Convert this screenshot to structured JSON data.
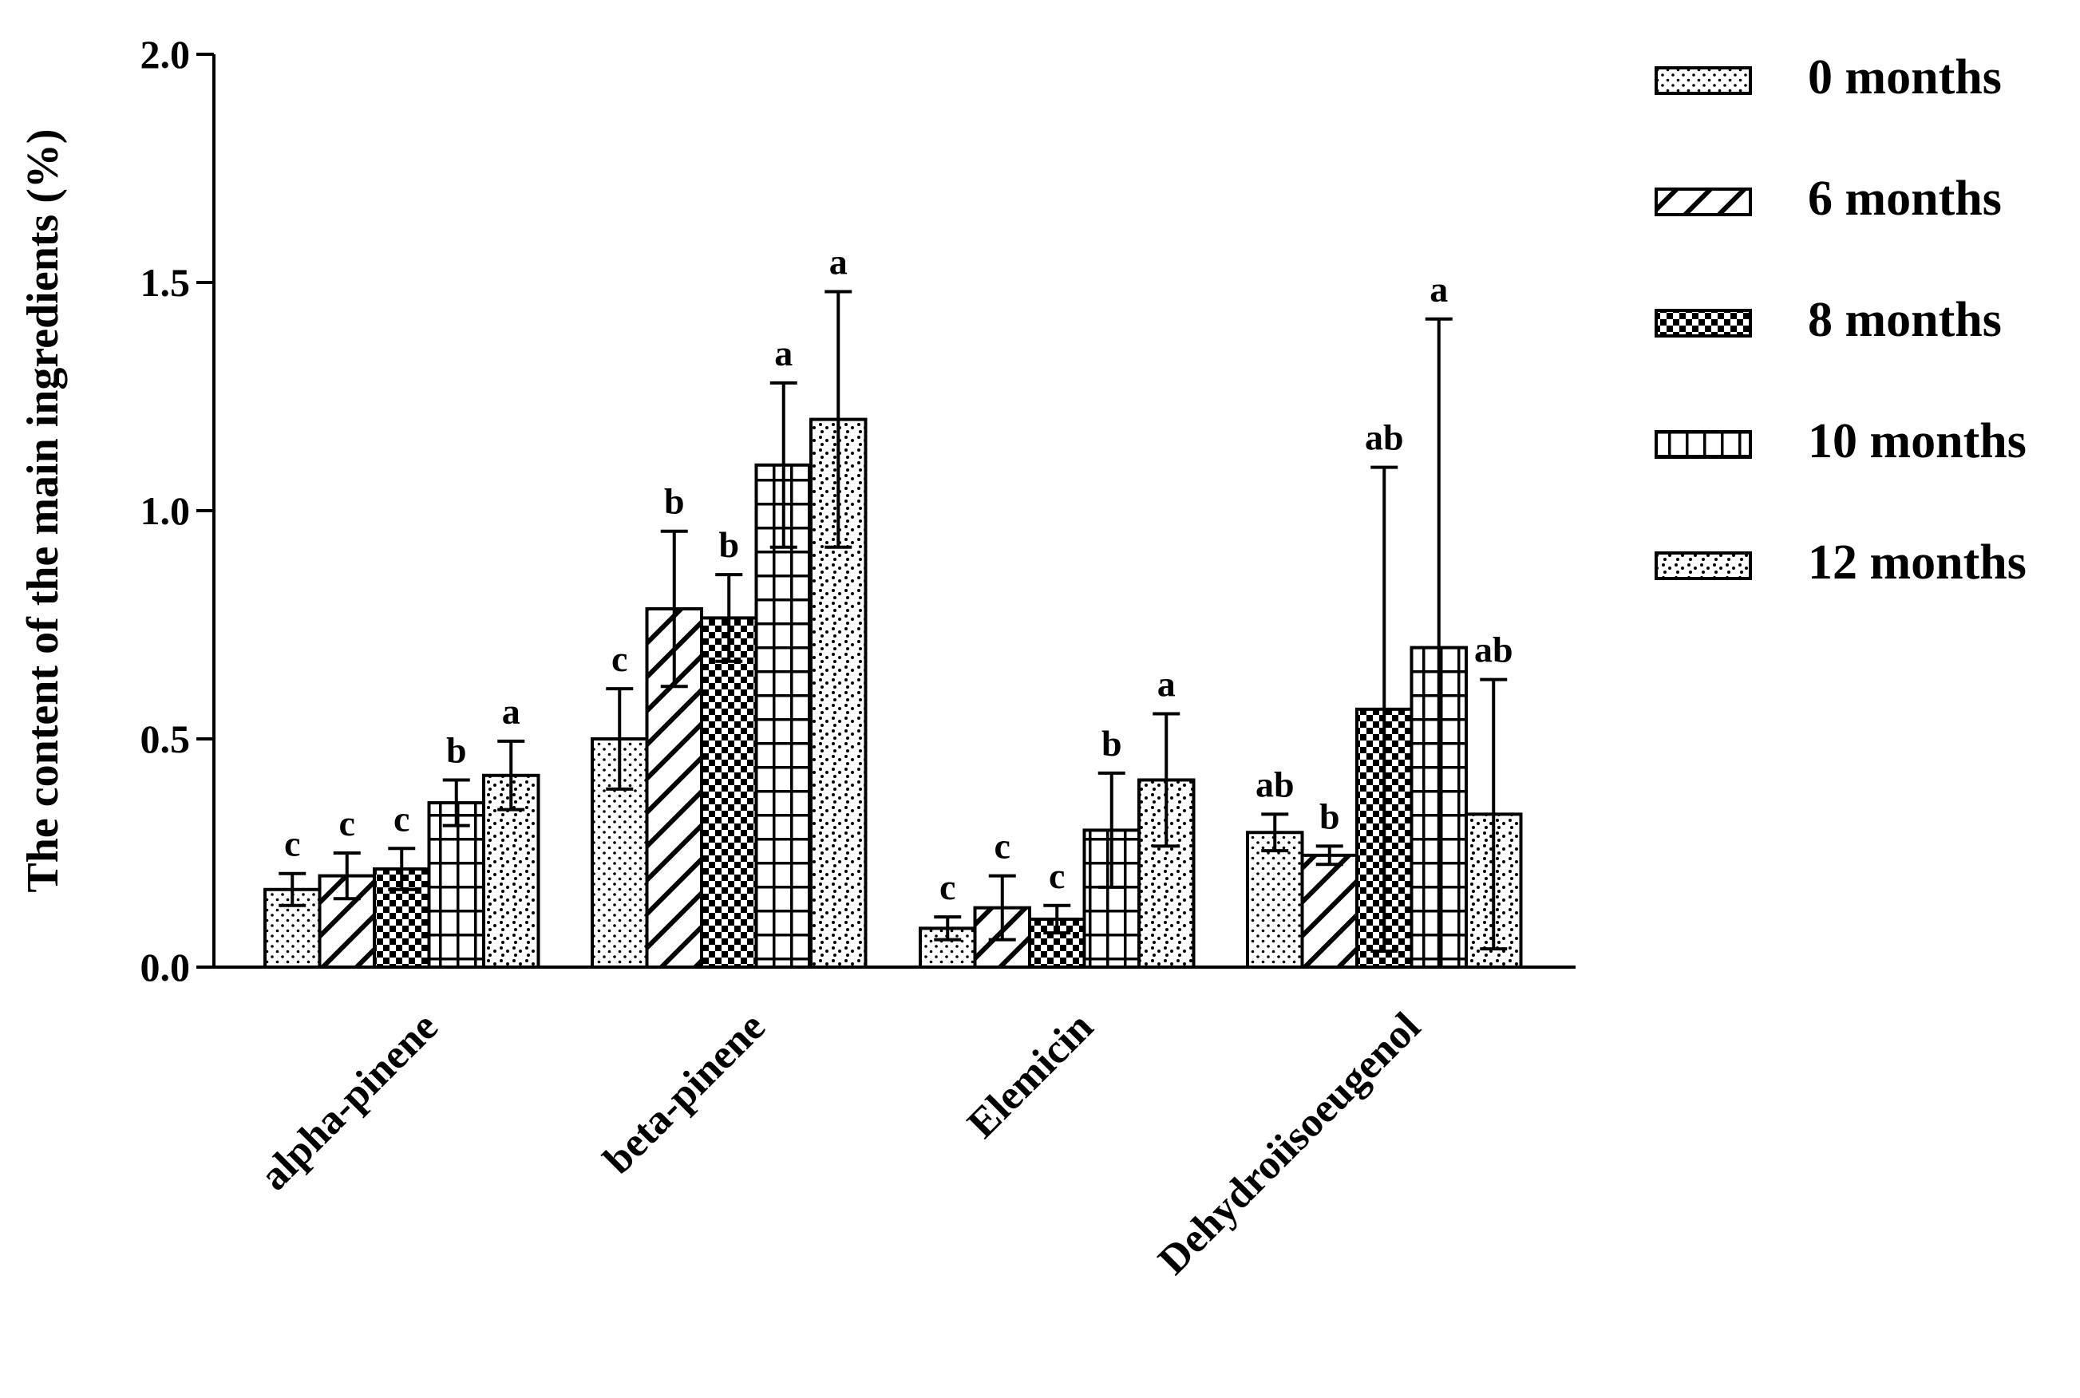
{
  "chart_data": {
    "type": "bar",
    "title": "",
    "xlabel": "",
    "ylabel": "The content of the main ingredients (%)",
    "ylim": [
      0,
      2.0
    ],
    "yticks": [
      "0.0",
      "0.5",
      "1.0",
      "1.5",
      "2.0"
    ],
    "ytick_values": [
      0,
      0.5,
      1.0,
      1.5,
      2.0
    ],
    "categories": [
      "alpha-pinene",
      "beta-pinene",
      "Elemicin",
      "Dehydroiisoeugenol"
    ],
    "legend_position": "top-right",
    "series": [
      {
        "name": "0 months",
        "pattern": "dots",
        "values": [
          0.17,
          0.5,
          0.085,
          0.295
        ],
        "errors": [
          0.035,
          0.11,
          0.025,
          0.04
        ],
        "letters": [
          "c",
          "c",
          "c",
          "ab"
        ]
      },
      {
        "name": "6 months",
        "pattern": "diagonal",
        "values": [
          0.2,
          0.785,
          0.13,
          0.245
        ],
        "errors": [
          0.05,
          0.17,
          0.07,
          0.02
        ],
        "letters": [
          "c",
          "b",
          "c",
          "b"
        ]
      },
      {
        "name": "8 months",
        "pattern": "checker",
        "values": [
          0.215,
          0.765,
          0.105,
          0.565
        ],
        "errors": [
          0.045,
          0.095,
          0.03,
          0.53
        ],
        "letters": [
          "c",
          "b",
          "c",
          "ab"
        ]
      },
      {
        "name": "10 months",
        "pattern": "grid",
        "values": [
          0.36,
          1.1,
          0.3,
          0.7
        ],
        "errors": [
          0.05,
          0.18,
          0.125,
          0.72
        ],
        "letters": [
          "b",
          "a",
          "b",
          "a"
        ]
      },
      {
        "name": "12 months",
        "pattern": "sparse-dots",
        "values": [
          0.42,
          1.2,
          0.41,
          0.335
        ],
        "errors": [
          0.075,
          0.28,
          0.145,
          0.295
        ],
        "letters": [
          "a",
          "a",
          "a",
          "ab"
        ]
      }
    ]
  }
}
